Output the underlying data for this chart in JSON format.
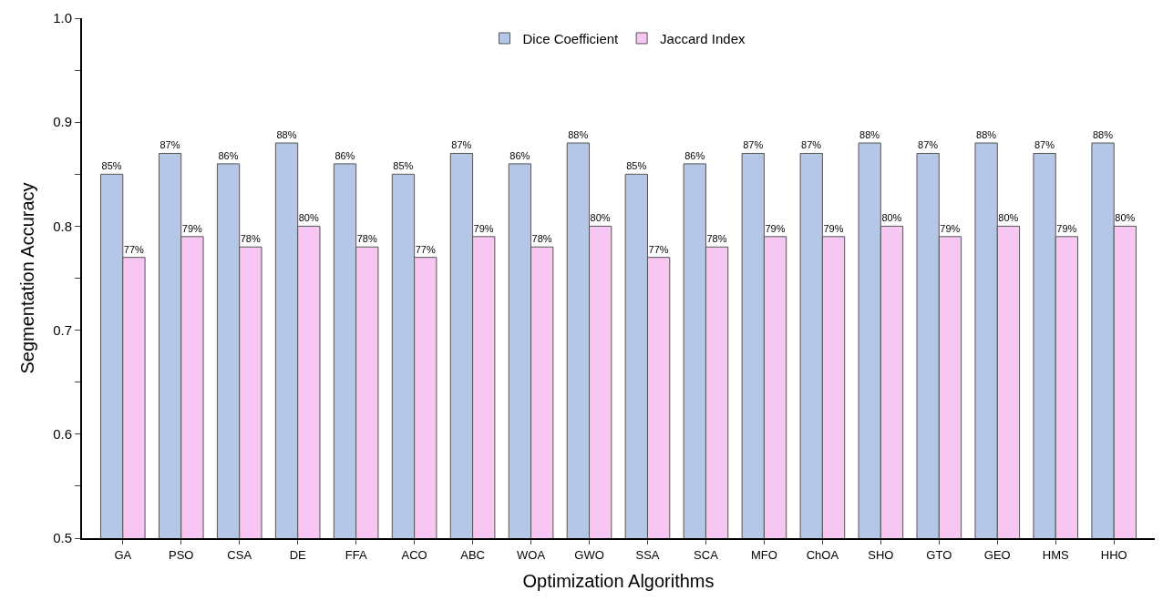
{
  "chart_data": {
    "type": "bar",
    "xlabel": "Optimization Algorithms",
    "ylabel": "Segmentation Accuracy",
    "categories": [
      "GA",
      "PSO",
      "CSA",
      "DE",
      "FFA",
      "ACO",
      "ABC",
      "WOA",
      "GWO",
      "SSA",
      "SCA",
      "MFO",
      "ChOA",
      "SHO",
      "GTO",
      "GEO",
      "HMS",
      "HHO"
    ],
    "series": [
      {
        "name": "Dice Coefficient",
        "color": "#b4c7e7",
        "values": [
          0.85,
          0.87,
          0.86,
          0.88,
          0.86,
          0.85,
          0.87,
          0.86,
          0.88,
          0.85,
          0.86,
          0.87,
          0.87,
          0.88,
          0.87,
          0.88,
          0.87,
          0.88
        ],
        "value_labels": [
          "85%",
          "87%",
          "86%",
          "88%",
          "86%",
          "85%",
          "87%",
          "86%",
          "88%",
          "85%",
          "86%",
          "87%",
          "87%",
          "88%",
          "87%",
          "88%",
          "87%",
          "88%"
        ]
      },
      {
        "name": "Jaccard Index",
        "color": "#f7c6f2",
        "values": [
          0.77,
          0.79,
          0.78,
          0.8,
          0.78,
          0.77,
          0.79,
          0.78,
          0.8,
          0.77,
          0.78,
          0.79,
          0.79,
          0.8,
          0.79,
          0.8,
          0.79,
          0.8
        ],
        "value_labels": [
          "77%",
          "79%",
          "78%",
          "80%",
          "78%",
          "77%",
          "79%",
          "78%",
          "80%",
          "77%",
          "78%",
          "79%",
          "79%",
          "80%",
          "79%",
          "80%",
          "79%",
          "80%"
        ]
      }
    ],
    "ylim": [
      0.5,
      1.0
    ],
    "yticks": [
      0.5,
      {
        "value": 0.55,
        "label": null
      },
      0.6,
      {
        "value": 0.65,
        "label": null
      },
      0.7,
      {
        "value": 0.75,
        "label": null
      },
      0.8,
      {
        "value": 0.85,
        "label": null
      },
      0.9,
      {
        "value": 0.95,
        "label": null
      },
      {
        "value": 1.0,
        "label": "1.0"
      }
    ],
    "legend": "top"
  }
}
